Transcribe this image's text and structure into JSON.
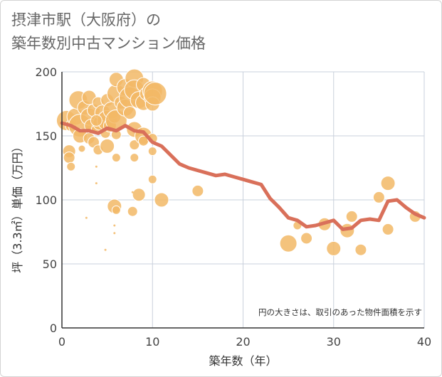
{
  "title": {
    "line1": "摂津市駅（大阪府）の",
    "line2": "築年数別中古マンション価格"
  },
  "colors": {
    "bubble_fill": "#f2b866",
    "bubble_stroke": "#ffffff",
    "line": "#d9705a",
    "grid": "#c9d0dc",
    "axis": "#333333"
  },
  "chart_data": {
    "type": "scatter",
    "xlabel": "築年数（年）",
    "ylabel": "坪（3.3㎡）単価（万円）",
    "xlim": [
      0,
      40
    ],
    "ylim": [
      0,
      200
    ],
    "xticks": [
      0,
      10,
      20,
      30,
      40
    ],
    "yticks": [
      0,
      50,
      100,
      150,
      200
    ],
    "grid": true,
    "note": "円の大きさは、取引のあった物件面積を示す",
    "bubble_size_meaning": "取引のあった物件面積（相対値）",
    "bubbles": [
      {
        "x": 0.5,
        "y": 162,
        "s": 14
      },
      {
        "x": 0.8,
        "y": 138,
        "s": 9
      },
      {
        "x": 0.8,
        "y": 133,
        "s": 8
      },
      {
        "x": 1,
        "y": 126,
        "s": 6
      },
      {
        "x": 1,
        "y": 158,
        "s": 8
      },
      {
        "x": 1.5,
        "y": 165,
        "s": 12
      },
      {
        "x": 1.8,
        "y": 178,
        "s": 13
      },
      {
        "x": 2,
        "y": 158,
        "s": 16
      },
      {
        "x": 2,
        "y": 150,
        "s": 10
      },
      {
        "x": 2.2,
        "y": 140,
        "s": 5
      },
      {
        "x": 2.5,
        "y": 172,
        "s": 10
      },
      {
        "x": 3,
        "y": 180,
        "s": 10
      },
      {
        "x": 3,
        "y": 165,
        "s": 12
      },
      {
        "x": 3,
        "y": 148,
        "s": 8
      },
      {
        "x": 3.2,
        "y": 158,
        "s": 9
      },
      {
        "x": 3.5,
        "y": 170,
        "s": 9
      },
      {
        "x": 3.5,
        "y": 145,
        "s": 8
      },
      {
        "x": 3.8,
        "y": 155,
        "s": 7
      },
      {
        "x": 4,
        "y": 176,
        "s": 8
      },
      {
        "x": 4,
        "y": 139,
        "s": 7
      },
      {
        "x": 4.2,
        "y": 160,
        "s": 10
      },
      {
        "x": 4.5,
        "y": 168,
        "s": 11
      },
      {
        "x": 4.8,
        "y": 152,
        "s": 7
      },
      {
        "x": 5,
        "y": 178,
        "s": 9
      },
      {
        "x": 5,
        "y": 162,
        "s": 14
      },
      {
        "x": 5,
        "y": 142,
        "s": 10
      },
      {
        "x": 5.3,
        "y": 158,
        "s": 9
      },
      {
        "x": 5.5,
        "y": 170,
        "s": 12
      },
      {
        "x": 5.8,
        "y": 165,
        "s": 9
      },
      {
        "x": 6,
        "y": 183,
        "s": 13
      },
      {
        "x": 6,
        "y": 194,
        "s": 10
      },
      {
        "x": 6,
        "y": 162,
        "s": 15
      },
      {
        "x": 6,
        "y": 151,
        "s": 7
      },
      {
        "x": 6,
        "y": 133,
        "s": 6
      },
      {
        "x": 6.5,
        "y": 176,
        "s": 9
      },
      {
        "x": 7,
        "y": 188,
        "s": 12
      },
      {
        "x": 7,
        "y": 172,
        "s": 12
      },
      {
        "x": 7.5,
        "y": 180,
        "s": 15
      },
      {
        "x": 7.5,
        "y": 168,
        "s": 9
      },
      {
        "x": 8,
        "y": 195,
        "s": 13
      },
      {
        "x": 8,
        "y": 186,
        "s": 14
      },
      {
        "x": 8,
        "y": 155,
        "s": 11
      },
      {
        "x": 8,
        "y": 143,
        "s": 7
      },
      {
        "x": 8,
        "y": 133,
        "s": 6
      },
      {
        "x": 8.5,
        "y": 178,
        "s": 12
      },
      {
        "x": 9,
        "y": 190,
        "s": 10
      },
      {
        "x": 9,
        "y": 176,
        "s": 11
      },
      {
        "x": 9,
        "y": 150,
        "s": 12
      },
      {
        "x": 9,
        "y": 146,
        "s": 7
      },
      {
        "x": 9.3,
        "y": 183,
        "s": 9
      },
      {
        "x": 10,
        "y": 185,
        "s": 14
      },
      {
        "x": 10,
        "y": 180,
        "s": 12
      },
      {
        "x": 10,
        "y": 175,
        "s": 10
      },
      {
        "x": 10,
        "y": 148,
        "s": 7
      },
      {
        "x": 10,
        "y": 138,
        "s": 6
      },
      {
        "x": 10.3,
        "y": 183,
        "s": 16
      },
      {
        "x": 3.8,
        "y": 162,
        "s": 8
      },
      {
        "x": 5.8,
        "y": 95,
        "s": 10
      },
      {
        "x": 6,
        "y": 92,
        "s": 6
      },
      {
        "x": 7.8,
        "y": 91,
        "s": 7
      },
      {
        "x": 8.5,
        "y": 104,
        "s": 9
      },
      {
        "x": 10,
        "y": 116,
        "s": 6
      },
      {
        "x": 11,
        "y": 100,
        "s": 10
      },
      {
        "x": 15,
        "y": 107,
        "s": 8
      },
      {
        "x": 3.8,
        "y": 126,
        "s": 1.5
      },
      {
        "x": 3.8,
        "y": 113,
        "s": 1.5
      },
      {
        "x": 2.7,
        "y": 86,
        "s": 1.5
      },
      {
        "x": 5.8,
        "y": 80,
        "s": 1.5
      },
      {
        "x": 5.8,
        "y": 74,
        "s": 1.5
      },
      {
        "x": 4.8,
        "y": 61,
        "s": 1.5
      },
      {
        "x": 7.8,
        "y": 106,
        "s": 1.5
      },
      {
        "x": 25,
        "y": 66,
        "s": 12
      },
      {
        "x": 26,
        "y": 80,
        "s": 6
      },
      {
        "x": 27,
        "y": 70,
        "s": 8
      },
      {
        "x": 29,
        "y": 81,
        "s": 9
      },
      {
        "x": 30,
        "y": 62,
        "s": 10
      },
      {
        "x": 31.5,
        "y": 76,
        "s": 10
      },
      {
        "x": 32,
        "y": 87,
        "s": 8
      },
      {
        "x": 33,
        "y": 61,
        "s": 8
      },
      {
        "x": 35,
        "y": 102,
        "s": 8
      },
      {
        "x": 36,
        "y": 113,
        "s": 10
      },
      {
        "x": 36,
        "y": 77,
        "s": 8
      },
      {
        "x": 39,
        "y": 87,
        "s": 8
      }
    ],
    "line": {
      "x": [
        0,
        1,
        2,
        3,
        4,
        5,
        6,
        7,
        8,
        9,
        10,
        11,
        12,
        13,
        14,
        15,
        16,
        17,
        18,
        19,
        20,
        21,
        22,
        23,
        24,
        25,
        26,
        27,
        28,
        29,
        30,
        31,
        32,
        33,
        34,
        35,
        36,
        37,
        38,
        39,
        40
      ],
      "y": [
        160,
        158,
        154,
        154,
        152,
        156,
        154,
        158,
        154,
        153,
        145,
        142,
        135,
        128,
        125,
        123,
        121,
        119,
        120,
        118,
        116,
        114,
        112,
        101,
        94,
        86,
        84,
        79,
        80,
        82,
        84,
        77,
        78,
        84,
        85,
        84,
        99,
        100,
        94,
        89,
        86
      ]
    }
  }
}
